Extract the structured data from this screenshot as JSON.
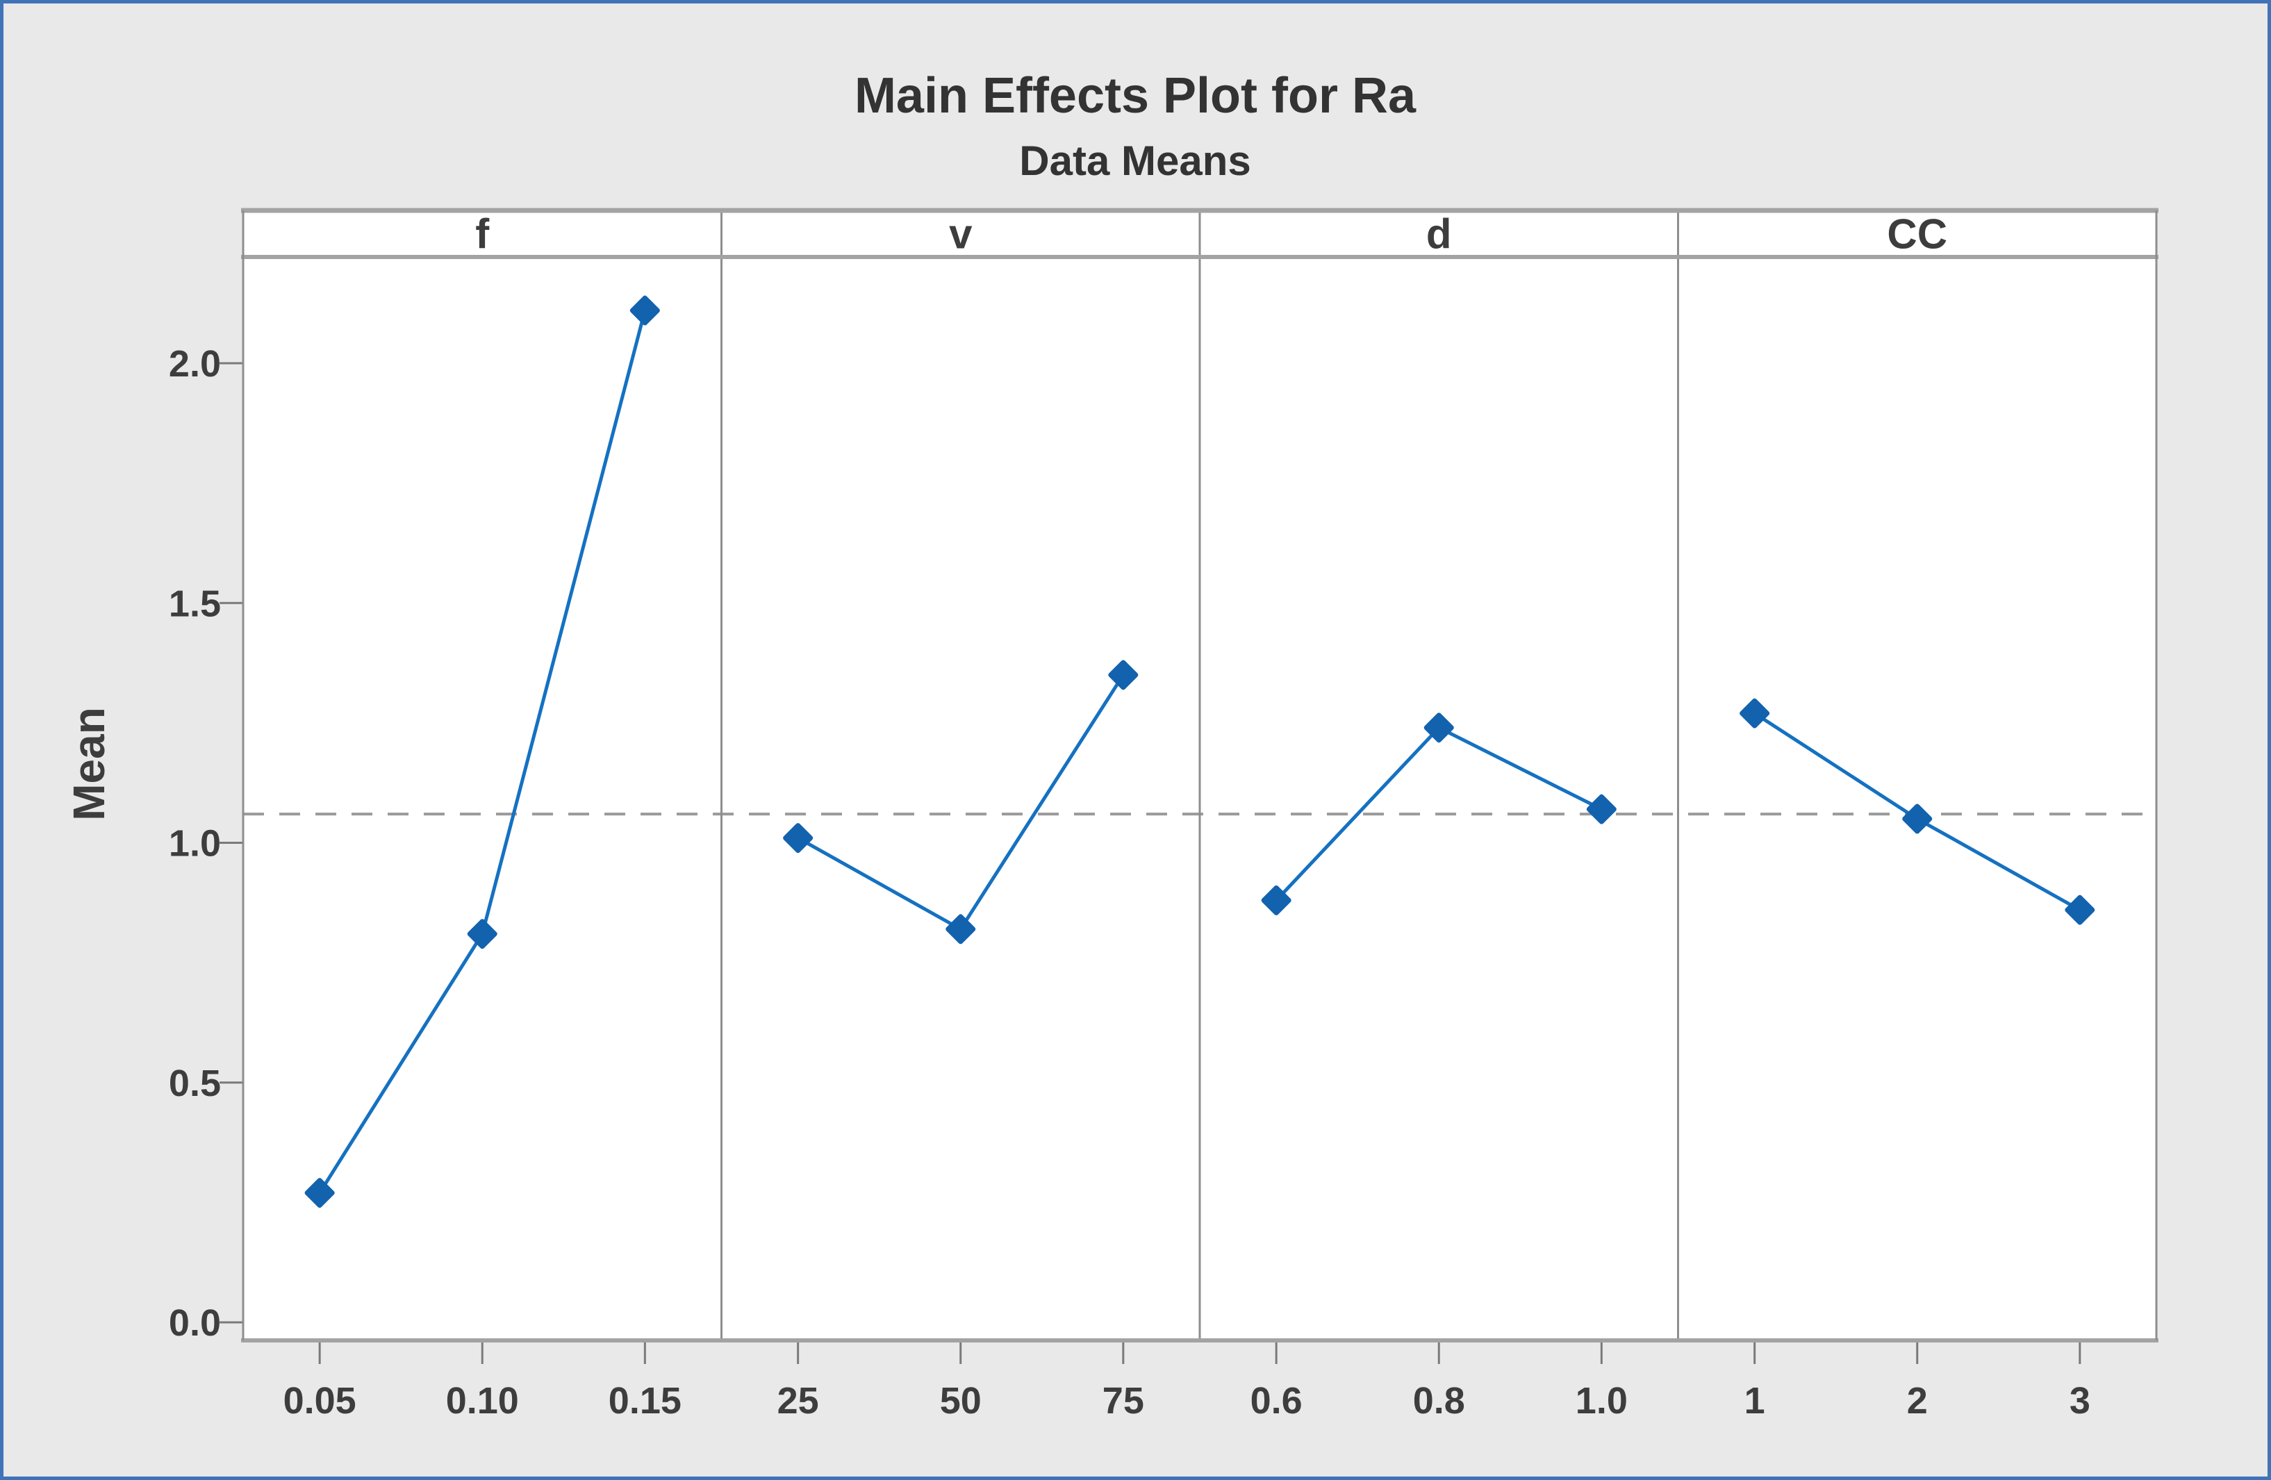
{
  "window": {
    "background_color": "#e9e9e9",
    "frame_color": "#4173b8",
    "plot_background": "#ffffff"
  },
  "chart_data": {
    "type": "line",
    "title": "Main Effects Plot for Ra",
    "subtitle": "Data Means",
    "ylabel": "Mean",
    "xlabel": "",
    "ylim": [
      0.0,
      2.2
    ],
    "yticks": [
      0.0,
      0.5,
      1.0,
      1.5,
      2.0
    ],
    "ytick_labels": [
      "0.0",
      "0.5",
      "1.0",
      "1.5",
      "2.0"
    ],
    "grid": false,
    "legend": "none",
    "grand_mean": 1.06,
    "reference_line_style": "dashed",
    "panels": [
      {
        "factor": "f",
        "categories": [
          "0.05",
          "0.10",
          "0.15"
        ],
        "values": [
          0.27,
          0.81,
          2.11
        ]
      },
      {
        "factor": "v",
        "categories": [
          "25",
          "50",
          "75"
        ],
        "values": [
          1.01,
          0.82,
          1.35
        ]
      },
      {
        "factor": "d",
        "categories": [
          "0.6",
          "0.8",
          "1.0"
        ],
        "values": [
          0.88,
          1.24,
          1.07
        ]
      },
      {
        "factor": "CC",
        "categories": [
          "1",
          "2",
          "3"
        ],
        "values": [
          1.27,
          1.05,
          0.86
        ]
      }
    ],
    "colors": {
      "line": "#1571c1",
      "marker": "#1262ae",
      "reference": "#9a9a9a",
      "text": "#3d3d3d",
      "title_text": "#333333",
      "axis": "#8e8e8e",
      "band_border": "#a3a3a3",
      "tick": "#7a7a7a"
    }
  }
}
